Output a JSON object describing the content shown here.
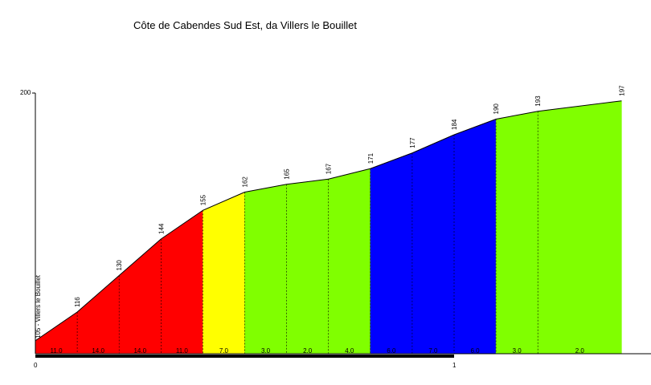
{
  "chart_data": {
    "type": "area",
    "title": "Côte de Cabendes Sud Est, da Villers le Bouillet",
    "xlabel": "",
    "ylabel": "",
    "xlim": [
      0,
      1.5
    ],
    "ylim": [
      100,
      200
    ],
    "y_ticks": [
      "200"
    ],
    "x_ticks": [
      "0",
      "1"
    ],
    "start_label": "105 - Villers le Bouillet",
    "points": [
      {
        "x": 0.0,
        "y": 105
      },
      {
        "x": 0.1,
        "y": 116
      },
      {
        "x": 0.2,
        "y": 130
      },
      {
        "x": 0.3,
        "y": 144
      },
      {
        "x": 0.4,
        "y": 155
      },
      {
        "x": 0.5,
        "y": 162
      },
      {
        "x": 0.6,
        "y": 165
      },
      {
        "x": 0.7,
        "y": 167
      },
      {
        "x": 0.8,
        "y": 171
      },
      {
        "x": 0.9,
        "y": 177
      },
      {
        "x": 1.0,
        "y": 184
      },
      {
        "x": 1.1,
        "y": 190
      },
      {
        "x": 1.2,
        "y": 193
      },
      {
        "x": 1.4,
        "y": 197
      }
    ],
    "elevation_labels": [
      "116",
      "130",
      "144",
      "155",
      "162",
      "165",
      "167",
      "171",
      "177",
      "184",
      "190",
      "193",
      "197"
    ],
    "segments": [
      {
        "grade": "11.0",
        "color": "#ff0000"
      },
      {
        "grade": "14.0",
        "color": "#ff0000"
      },
      {
        "grade": "14.0",
        "color": "#ff0000"
      },
      {
        "grade": "11.0",
        "color": "#ff0000"
      },
      {
        "grade": "7.0",
        "color": "#ffff00"
      },
      {
        "grade": "3.0",
        "color": "#80ff00"
      },
      {
        "grade": "2.0",
        "color": "#80ff00"
      },
      {
        "grade": "4.0",
        "color": "#80ff00"
      },
      {
        "grade": "6.0",
        "color": "#0000ff"
      },
      {
        "grade": "7.0",
        "color": "#0000ff"
      },
      {
        "grade": "6.0",
        "color": "#0000ff"
      },
      {
        "grade": "3.0",
        "color": "#80ff00"
      },
      {
        "grade": "2.0",
        "color": "#80ff00"
      }
    ]
  }
}
